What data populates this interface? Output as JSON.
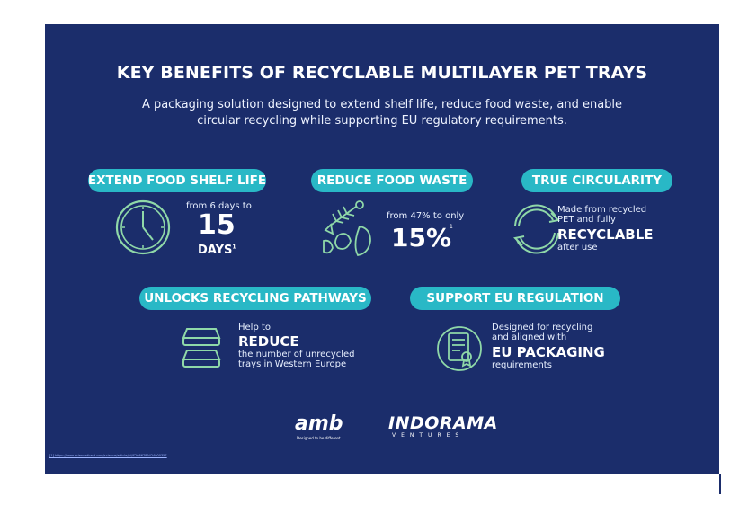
{
  "title": "KEY BENEFITS OF RECYCLABLE MULTILAYER PET TRAYS",
  "subtitle_line1": "A packaging solution designed to extend shelf life, reduce food waste, and enable",
  "subtitle_line2": "circular recycling while supporting EU regulatory requirements.",
  "benefits": {
    "shelf_life": {
      "label": "EXTEND FOOD SHELF LIFE",
      "from_text": "from 6 days to",
      "value": "15",
      "unit": "DAYS",
      "note": "1",
      "icon": "clock-icon"
    },
    "food_waste": {
      "label": "REDUCE FOOD WASTE",
      "from_text": "from 47% to only",
      "value": "15%",
      "note": "1",
      "icon": "food-scraps-icon"
    },
    "circularity": {
      "label": "TRUE CIRCULARITY",
      "line1": "Made from recycled",
      "line2": "PET and fully",
      "emphasis": "RECYCLABLE",
      "line3": "after use",
      "icon": "recycle-arrows-icon"
    },
    "recycling_pathways": {
      "label": "UNLOCKS RECYCLING PATHWAYS",
      "line1": "Help to",
      "emphasis": "REDUCE",
      "line2": "the number of unrecycled",
      "line3": "trays in Western Europe",
      "icon": "stacked-trays-icon"
    },
    "eu_regulation": {
      "label": "SUPPORT EU REGULATION",
      "line1": "Designed for recycling",
      "line2": "and aligned with",
      "emphasis": "EU PACKAGING",
      "line3": "requirements",
      "icon": "certified-document-icon"
    }
  },
  "logos": {
    "amb": {
      "name": "amb",
      "tagline": "Designed to be different"
    },
    "indorama": {
      "name": "INDORAMA",
      "sub": "VENTURES"
    }
  },
  "footnote": "[1] https://www.sciencedirect.com/science/article/pii/S2666789424000357",
  "colors": {
    "panel": "#1b2d6b",
    "accent": "#29b8c6",
    "icon_line": "#8fd8a8"
  }
}
